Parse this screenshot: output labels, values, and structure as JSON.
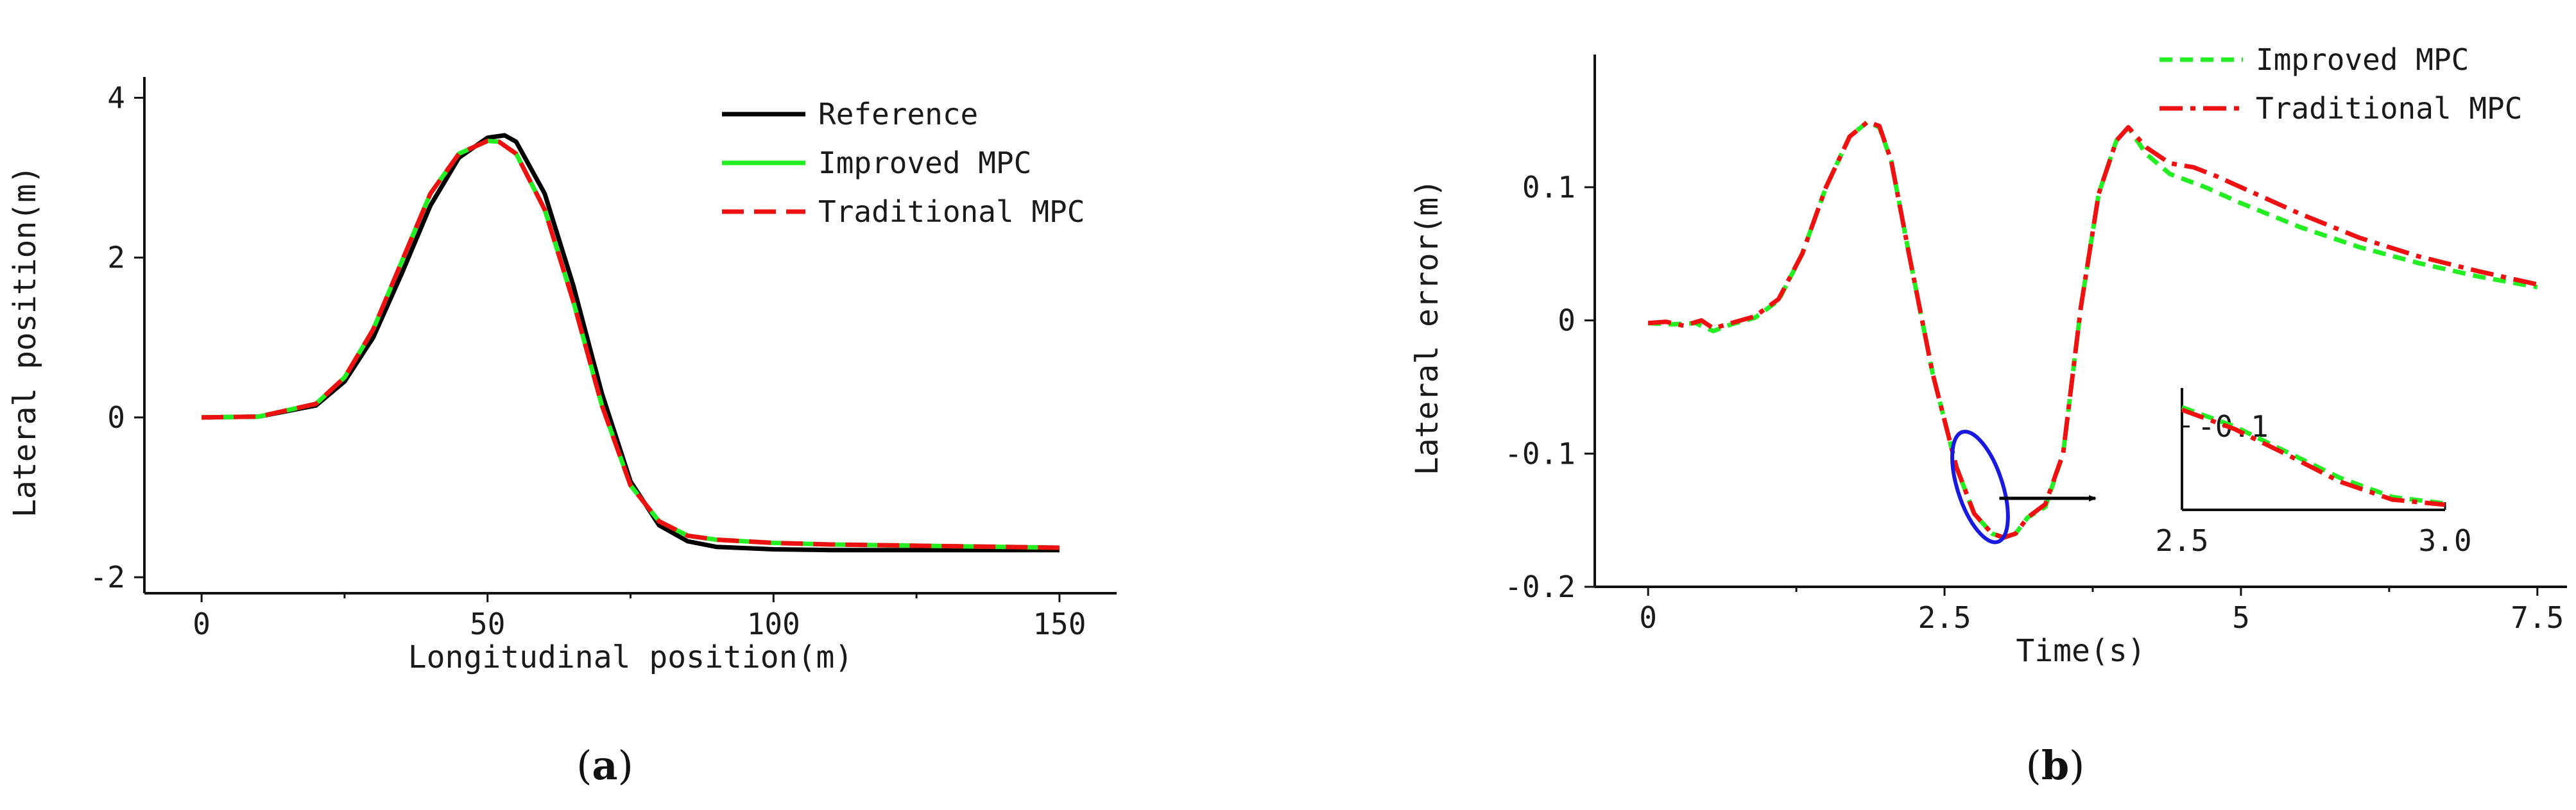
{
  "chart_data": [
    {
      "type": "line",
      "panel": "(a)",
      "panel_letter": "a",
      "xlabel": "Longitudinal position(m)",
      "ylabel": "Lateral position(m)",
      "xlim": [
        -10,
        160
      ],
      "ylim": [
        -2.2,
        4.1
      ],
      "xticks": [
        0,
        50,
        100,
        150
      ],
      "yticks": [
        -2,
        0,
        2,
        4
      ],
      "legend_position": "top-right",
      "series": [
        {
          "name": "Reference",
          "color": "#000000",
          "dash": "solid",
          "x": [
            0,
            10,
            20,
            25,
            30,
            35,
            40,
            45,
            50,
            53,
            55,
            60,
            65,
            70,
            75,
            80,
            85,
            90,
            100,
            110,
            120,
            130,
            140,
            150
          ],
          "y": [
            0,
            0.01,
            0.15,
            0.45,
            1.0,
            1.8,
            2.65,
            3.25,
            3.5,
            3.53,
            3.45,
            2.8,
            1.65,
            0.3,
            -0.8,
            -1.35,
            -1.55,
            -1.62,
            -1.65,
            -1.66,
            -1.66,
            -1.66,
            -1.66,
            -1.66
          ]
        },
        {
          "name": "Improved MPC",
          "color": "#22ee22",
          "dash": "solid",
          "x": [
            0,
            10,
            20,
            25,
            30,
            35,
            40,
            45,
            50,
            52,
            55,
            60,
            65,
            70,
            75,
            80,
            85,
            90,
            100,
            110,
            120,
            130,
            140,
            150
          ],
          "y": [
            0,
            0.01,
            0.17,
            0.5,
            1.1,
            1.95,
            2.8,
            3.3,
            3.46,
            3.45,
            3.3,
            2.6,
            1.45,
            0.15,
            -0.85,
            -1.3,
            -1.48,
            -1.53,
            -1.57,
            -1.59,
            -1.6,
            -1.61,
            -1.62,
            -1.63
          ]
        },
        {
          "name": "Traditional MPC",
          "color": "#ee1111",
          "dash": "long",
          "x": [
            0,
            10,
            20,
            25,
            30,
            35,
            40,
            45,
            50,
            52,
            55,
            60,
            65,
            70,
            75,
            80,
            85,
            90,
            100,
            110,
            120,
            130,
            140,
            150
          ],
          "y": [
            0,
            0.01,
            0.17,
            0.5,
            1.1,
            1.95,
            2.8,
            3.3,
            3.46,
            3.45,
            3.3,
            2.6,
            1.45,
            0.15,
            -0.85,
            -1.3,
            -1.48,
            -1.53,
            -1.57,
            -1.59,
            -1.6,
            -1.61,
            -1.62,
            -1.63
          ]
        }
      ]
    },
    {
      "type": "line",
      "panel": "(b)",
      "panel_letter": "b",
      "xlabel": "Time(s)",
      "ylabel": "Lateral error(m)",
      "xlim": [
        -0.45,
        7.75
      ],
      "ylim": [
        -0.2,
        0.19
      ],
      "xticks": [
        0,
        2.5,
        5,
        7.5
      ],
      "xtick_labels": [
        "0",
        "2.5",
        "5",
        "7.5"
      ],
      "yticks": [
        -0.2,
        -0.1,
        0,
        0.1
      ],
      "ytick_labels": [
        "-0.2",
        "-0.1",
        "0",
        "0.1"
      ],
      "legend_position": "top-right",
      "series": [
        {
          "name": "Improved MPC",
          "color": "#22ee22",
          "dash": "short",
          "x": [
            0,
            0.2,
            0.4,
            0.55,
            0.7,
            0.9,
            1.1,
            1.3,
            1.5,
            1.7,
            1.85,
            1.95,
            2.05,
            2.2,
            2.4,
            2.6,
            2.75,
            2.9,
            3.0,
            3.1,
            3.2,
            3.35,
            3.5,
            3.65,
            3.8,
            3.95,
            4.05,
            4.2,
            4.4,
            4.7,
            5.0,
            5.5,
            6.0,
            6.5,
            7.0,
            7.5
          ],
          "y": [
            -0.002,
            -0.003,
            -0.002,
            -0.008,
            -0.003,
            0.002,
            0.015,
            0.05,
            0.1,
            0.138,
            0.149,
            0.145,
            0.12,
            0.05,
            -0.04,
            -0.11,
            -0.145,
            -0.16,
            -0.163,
            -0.16,
            -0.148,
            -0.14,
            -0.1,
            0.01,
            0.095,
            0.135,
            0.145,
            0.125,
            0.11,
            0.1,
            0.088,
            0.07,
            0.055,
            0.043,
            0.033,
            0.025
          ]
        },
        {
          "name": "Traditional MPC",
          "color": "#ee1111",
          "dash": "dashdot",
          "x": [
            0,
            0.15,
            0.3,
            0.45,
            0.55,
            0.7,
            0.9,
            1.1,
            1.3,
            1.5,
            1.7,
            1.85,
            1.95,
            2.05,
            2.2,
            2.4,
            2.6,
            2.75,
            2.9,
            3.0,
            3.1,
            3.2,
            3.35,
            3.5,
            3.65,
            3.8,
            3.95,
            4.05,
            4.2,
            4.4,
            4.6,
            4.8,
            5.0,
            5.5,
            6.0,
            6.5,
            7.0,
            7.5
          ],
          "y": [
            -0.002,
            -0.001,
            -0.004,
            0.0,
            -0.006,
            -0.002,
            0.003,
            0.016,
            0.05,
            0.1,
            0.138,
            0.149,
            0.146,
            0.12,
            0.05,
            -0.04,
            -0.11,
            -0.145,
            -0.16,
            -0.163,
            -0.16,
            -0.148,
            -0.138,
            -0.1,
            0.01,
            0.095,
            0.135,
            0.145,
            0.13,
            0.118,
            0.115,
            0.108,
            0.1,
            0.08,
            0.062,
            0.048,
            0.037,
            0.027
          ]
        }
      ],
      "inset": {
        "xlim": [
          2.5,
          3.0
        ],
        "ylim": [
          -0.165,
          -0.07
        ],
        "xticks": [
          2.5,
          3.0
        ],
        "xtick_labels": [
          "2.5",
          "3.0"
        ],
        "yticks": [
          -0.1
        ],
        "ytick_labels": [
          "-0.1"
        ],
        "series": [
          {
            "name": "Improved MPC",
            "color": "#22ee22",
            "dash": "short",
            "x": [
              2.5,
              2.6,
              2.7,
              2.8,
              2.9,
              3.0
            ],
            "y": [
              -0.085,
              -0.1,
              -0.12,
              -0.14,
              -0.155,
              -0.16
            ]
          },
          {
            "name": "Traditional MPC",
            "color": "#ee1111",
            "dash": "dashdot",
            "x": [
              2.5,
              2.6,
              2.7,
              2.8,
              2.9,
              3.0
            ],
            "y": [
              -0.087,
              -0.102,
              -0.122,
              -0.143,
              -0.157,
              -0.161
            ]
          }
        ],
        "highlight": {
          "x": 2.8,
          "y": -0.125,
          "marker_color": "#1a1adf"
        }
      }
    }
  ]
}
